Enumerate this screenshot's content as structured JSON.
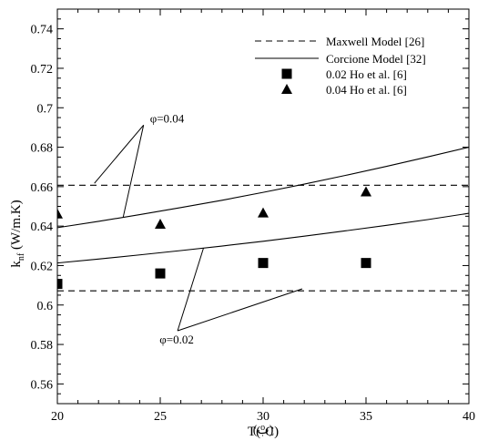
{
  "chart_data": {
    "type": "line",
    "title": "",
    "xlabel": {
      "main": "T(",
      "sup": "o",
      "tail": "C)"
    },
    "ylabel": {
      "main": "k",
      "sub": "nf",
      "tail": " (W/m.K)"
    },
    "xlim": [
      20,
      40
    ],
    "ylim": [
      0.55,
      0.75
    ],
    "xticks": [
      20,
      25,
      30,
      35,
      40
    ],
    "yticks": [
      0.56,
      0.58,
      0.6,
      0.62,
      0.64,
      0.66,
      0.68,
      0.7,
      0.72,
      0.74
    ],
    "xtick_labels": [
      "20",
      "25",
      "30",
      "35",
      "40"
    ],
    "ytick_labels": [
      "0.56",
      "0.58",
      "0.6",
      "0.62",
      "0.64",
      "0.66",
      "0.68",
      "0.7",
      "0.72",
      "0.74"
    ],
    "grid": false,
    "legend_position": "top-right",
    "series": [
      {
        "name": "Maxwell Model [26]",
        "style": "dashed",
        "color": "#000000",
        "x": [
          20,
          40
        ],
        "y": [
          0.6607,
          0.6607
        ]
      },
      {
        "name": "Maxwell Model [26]",
        "style": "dashed",
        "color": "#000000",
        "x": [
          20,
          40
        ],
        "y": [
          0.6072,
          0.6072
        ]
      },
      {
        "name": "Corcione Model [32]",
        "style": "solid",
        "color": "#000000",
        "x": [
          20,
          22,
          24,
          26,
          28,
          30,
          32,
          34,
          36,
          38,
          40
        ],
        "y": [
          0.6392,
          0.6424,
          0.6458,
          0.6494,
          0.6531,
          0.6571,
          0.6613,
          0.6657,
          0.6703,
          0.6751,
          0.68
        ]
      },
      {
        "name": "Corcione Model [32]",
        "style": "solid",
        "color": "#000000",
        "x": [
          20,
          22,
          24,
          26,
          28,
          30,
          32,
          34,
          36,
          38,
          40
        ],
        "y": [
          0.6213,
          0.6233,
          0.6254,
          0.6276,
          0.6299,
          0.6323,
          0.6349,
          0.6376,
          0.6404,
          0.6433,
          0.6465
        ]
      },
      {
        "name": "0.02 Ho et al. [6]",
        "marker": "square",
        "color": "#000000",
        "x": [
          20,
          25,
          30,
          35
        ],
        "y": [
          0.6107,
          0.616,
          0.6213,
          0.6213
        ]
      },
      {
        "name": "0.04 Ho et al. [6]",
        "marker": "triangle",
        "color": "#000000",
        "x": [
          20,
          25,
          30,
          35
        ],
        "y": [
          0.6462,
          0.641,
          0.6467,
          0.6574
        ]
      }
    ],
    "legend": [
      {
        "label": "Maxwell Model [26]",
        "kind": "dashed"
      },
      {
        "label": "Corcione Model [32]",
        "kind": "solid"
      },
      {
        "label": "0.02 Ho et al. [6]",
        "kind": "square"
      },
      {
        "label": "0.04 Ho et al. [6]",
        "kind": "triangle"
      }
    ],
    "annotations": [
      {
        "text": "φ=0.04",
        "text_at": [
          24.5,
          0.6926
        ],
        "targets": [
          [
            21.8,
            0.6617
          ],
          [
            23.2,
            0.6446
          ]
        ]
      },
      {
        "text": "φ=0.02",
        "text_at": [
          25.8,
          0.5805
        ],
        "targets": [
          [
            27.1,
            0.6288
          ],
          [
            31.9,
            0.6082
          ]
        ]
      }
    ]
  },
  "caption": "(ب)"
}
